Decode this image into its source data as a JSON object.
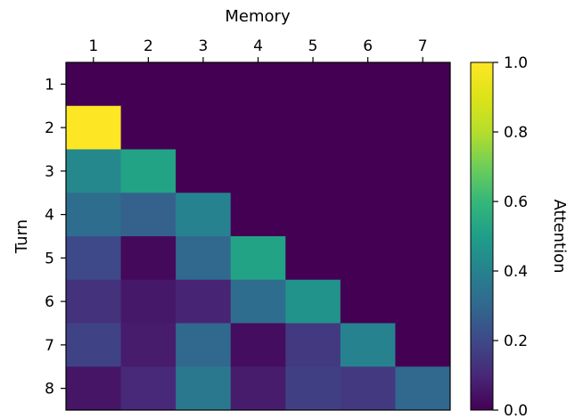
{
  "chart_data": {
    "type": "heatmap",
    "xlabel": "Memory",
    "ylabel": "Turn",
    "x_categories": [
      "1",
      "2",
      "3",
      "4",
      "5",
      "6",
      "7"
    ],
    "y_categories": [
      "1",
      "2",
      "3",
      "4",
      "5",
      "6",
      "7",
      "8"
    ],
    "values": [
      [
        0.0,
        0.0,
        0.0,
        0.0,
        0.0,
        0.0,
        0.0
      ],
      [
        1.0,
        0.0,
        0.0,
        0.0,
        0.0,
        0.0,
        0.0
      ],
      [
        0.42,
        0.52,
        0.0,
        0.0,
        0.0,
        0.0,
        0.0
      ],
      [
        0.32,
        0.28,
        0.4,
        0.0,
        0.0,
        0.0,
        0.0
      ],
      [
        0.2,
        0.02,
        0.3,
        0.52,
        0.0,
        0.0,
        0.0
      ],
      [
        0.13,
        0.06,
        0.09,
        0.32,
        0.46,
        0.0,
        0.0
      ],
      [
        0.18,
        0.07,
        0.3,
        0.03,
        0.15,
        0.4,
        0.0
      ],
      [
        0.05,
        0.1,
        0.36,
        0.07,
        0.17,
        0.15,
        0.3
      ]
    ],
    "colorbar": {
      "label": "Attention",
      "range": [
        0.0,
        1.0
      ],
      "ticks": [
        "0.0",
        "0.2",
        "0.4",
        "0.6",
        "0.8",
        "1.0"
      ],
      "colormap": "viridis"
    },
    "x_axis_position": "top"
  }
}
